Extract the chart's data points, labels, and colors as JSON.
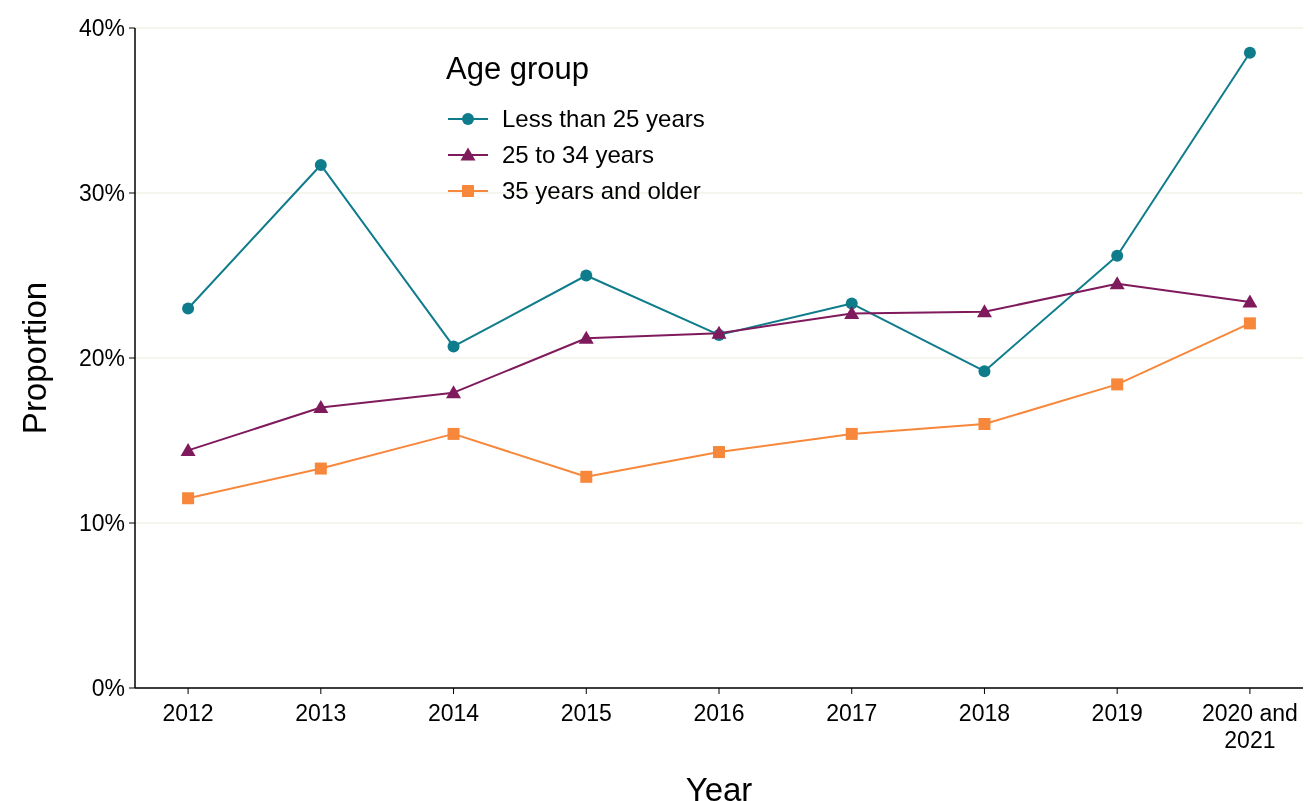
{
  "chart_data": {
    "type": "line",
    "xlabel": "Year",
    "ylabel": "Proportion",
    "legend_title": "Age group",
    "categories": [
      "2012",
      "2013",
      "2014",
      "2015",
      "2016",
      "2017",
      "2018",
      "2019",
      "2020 and 2021"
    ],
    "series": [
      {
        "name": "Less than 25 years",
        "color": "#0f7c8c",
        "marker": "circle",
        "values": [
          23.0,
          31.7,
          20.7,
          25.0,
          21.4,
          23.3,
          19.2,
          26.2,
          38.5
        ]
      },
      {
        "name": "25 to 34 years",
        "color": "#7f1a5c",
        "marker": "triangle",
        "values": [
          14.4,
          17.0,
          17.9,
          21.2,
          21.5,
          22.7,
          22.8,
          24.5,
          23.4
        ]
      },
      {
        "name": "35 years and older",
        "color": "#f7873a",
        "marker": "square",
        "values": [
          11.5,
          13.3,
          15.4,
          12.8,
          14.3,
          15.4,
          16.0,
          18.4,
          22.1
        ]
      }
    ],
    "ylim": [
      0,
      40
    ],
    "yticks": [
      {
        "value": 0,
        "label": "0%"
      },
      {
        "value": 10,
        "label": "10%"
      },
      {
        "value": 20,
        "label": "20%"
      },
      {
        "value": 30,
        "label": "30%"
      },
      {
        "value": 40,
        "label": "40%"
      }
    ],
    "grid": "y",
    "legend": "top",
    "line_style": "solid"
  }
}
